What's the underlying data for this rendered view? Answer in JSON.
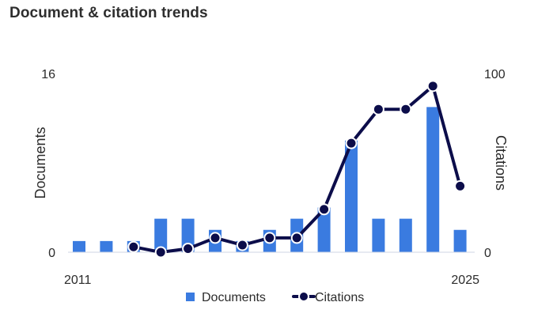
{
  "chart_title": "Document & citation trends",
  "chart_data": {
    "type": "bar+line",
    "title": "Document & citation trends",
    "x": [
      2011,
      2012,
      2013,
      2014,
      2015,
      2016,
      2017,
      2018,
      2019,
      2020,
      2021,
      2022,
      2023,
      2024,
      2025
    ],
    "x_tick_labels": [
      "2011",
      "2025"
    ],
    "series": [
      {
        "name": "Documents",
        "type": "bar",
        "axis": "left",
        "color": "#3a7be0",
        "values": [
          1,
          1,
          1,
          3,
          3,
          2,
          1,
          2,
          3,
          4,
          10,
          3,
          3,
          13,
          2
        ]
      },
      {
        "name": "Citations",
        "type": "line",
        "axis": "right",
        "color": "#0c0d4a",
        "values": [
          null,
          null,
          3,
          0,
          2,
          8,
          4,
          8,
          8,
          24,
          61,
          80,
          80,
          93,
          37
        ]
      }
    ],
    "y_left": {
      "label": "Documents",
      "range": [
        0,
        16
      ],
      "tick_labels": [
        "0",
        "16"
      ]
    },
    "y_right": {
      "label": "Citations",
      "range": [
        0,
        100
      ],
      "tick_labels": [
        "0",
        "100"
      ]
    },
    "legend": {
      "position": "bottom",
      "entries": [
        "Documents",
        "Citations"
      ]
    },
    "grid": false
  }
}
